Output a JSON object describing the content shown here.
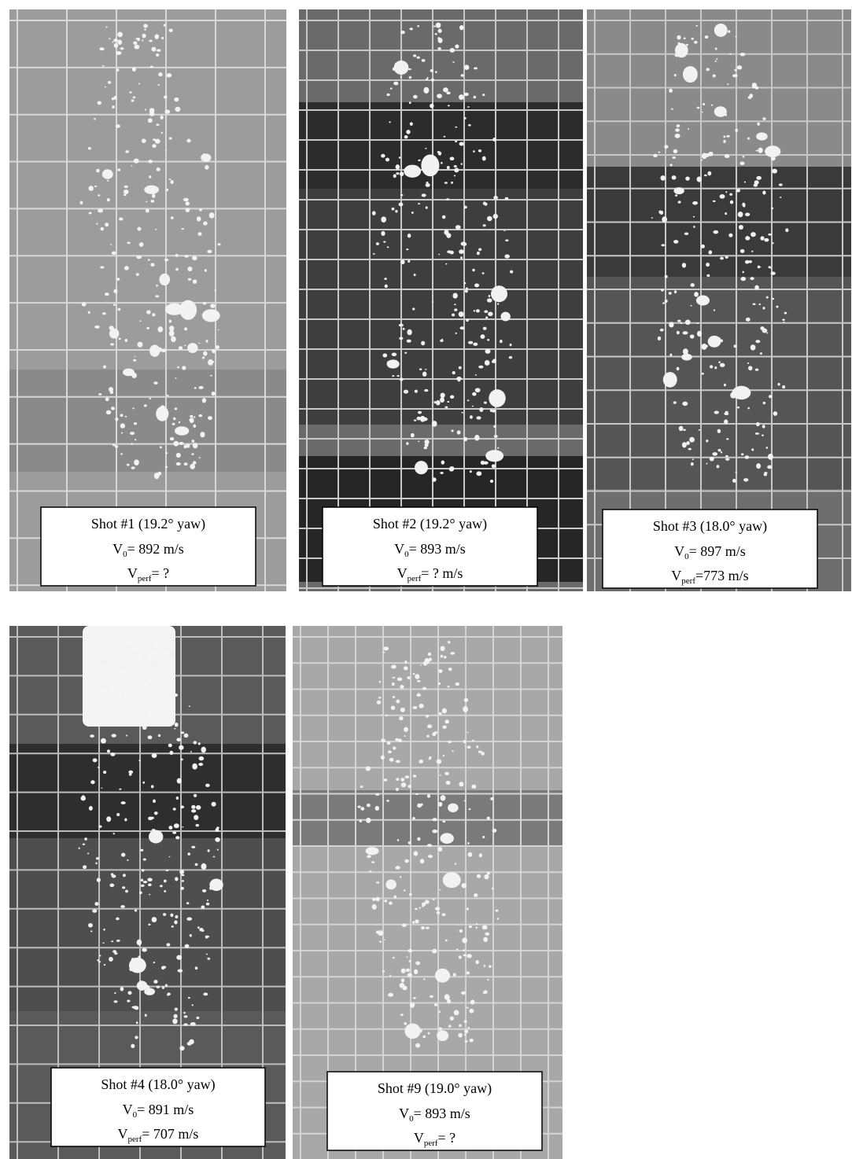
{
  "panels": [
    {
      "title": "Shot #1  (19.2° yaw)",
      "v0": {
        "symbol": "V",
        "sub": "0",
        "text": "= 892 m/s"
      },
      "vperf": {
        "symbol": "V",
        "sub": "perf",
        "text": "= ?"
      }
    },
    {
      "title": "Shot #2  (19.2° yaw)",
      "v0": {
        "symbol": "V",
        "sub": "0",
        "text": "= 893 m/s"
      },
      "vperf": {
        "symbol": "V",
        "sub": "perf",
        "text": "= ? m/s"
      }
    },
    {
      "title": "Shot #3  (18.0° yaw)",
      "v0": {
        "symbol": "V",
        "sub": "0",
        "text": "= 897 m/s"
      },
      "vperf": {
        "symbol": "V",
        "sub": "perf",
        "text": "=773 m/s"
      }
    },
    {
      "title": "Shot #4  (18.0° yaw)",
      "v0": {
        "symbol": "V",
        "sub": "0",
        "text": "= 891 m/s"
      },
      "vperf": {
        "symbol": "V",
        "sub": "perf",
        "text": "= 707 m/s"
      }
    },
    {
      "title": "Shot #9  (19.0° yaw)",
      "v0": {
        "symbol": "V",
        "sub": "0",
        "text": "= 893 m/s"
      },
      "vperf": {
        "symbol": "V",
        "sub": "perf",
        "text": "= ?"
      }
    }
  ]
}
